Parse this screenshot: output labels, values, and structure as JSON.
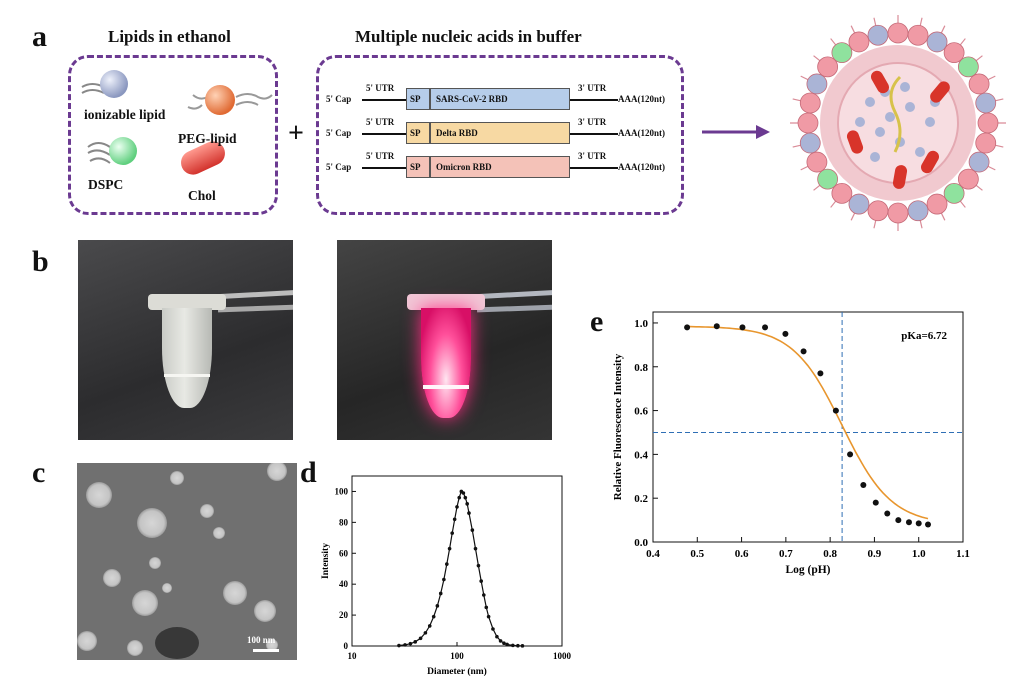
{
  "panels": {
    "a": "a",
    "b": "b",
    "c": "c",
    "d": "d",
    "e": "e"
  },
  "panel_a": {
    "lipids_title": "Lipids in ethanol",
    "nucleic_title": "Multiple nucleic acids in buffer",
    "lipid_labels": {
      "ionizable": "ionizable lipid",
      "peg": "PEG-lipid",
      "dspc": "DSPC",
      "chol": "Chol"
    },
    "plus": "+",
    "constructs": [
      {
        "cap": "5' Cap",
        "utr5": "5' UTR",
        "sp": "SP",
        "name": "SARS-CoV-2 RBD",
        "utr3": "3' UTR",
        "tail": "AAA(120nt)",
        "color": "#b6cdea"
      },
      {
        "cap": "5' Cap",
        "utr5": "5' UTR",
        "sp": "SP",
        "name": "Delta RBD",
        "utr3": "3' UTR",
        "tail": "AAA(120nt)",
        "color": "#f7d9a3"
      },
      {
        "cap": "5' Cap",
        "utr5": "5' UTR",
        "sp": "SP",
        "name": "Omicron RBD",
        "utr3": "3' UTR",
        "tail": "AAA(120nt)",
        "color": "#f4c2b8"
      }
    ]
  },
  "panel_c": {
    "scale_bar": "100 nm"
  },
  "chart_data": [
    {
      "type": "line",
      "panel": "d",
      "xlabel": "Diameter (nm)",
      "ylabel": "Intensity",
      "xscale": "log",
      "xlim": [
        10,
        1000
      ],
      "ylim": [
        0,
        110
      ],
      "xticks": [
        "10",
        "100",
        "1000"
      ],
      "yticks": [
        "0",
        "20",
        "40",
        "60",
        "80",
        "100"
      ],
      "peak_x": 105,
      "peak_y": 100,
      "series": [
        {
          "x": [
            28,
            32,
            36,
            40,
            45,
            50,
            55,
            60,
            65,
            70,
            75,
            80,
            85,
            90,
            95,
            100,
            105,
            110,
            115,
            120,
            125,
            130,
            140,
            150,
            160,
            170,
            180,
            190,
            200,
            220,
            240,
            260,
            280,
            300,
            340,
            380,
            420
          ],
          "y": [
            0.3,
            0.7,
            1.5,
            2.7,
            5,
            8.5,
            13,
            19,
            26,
            34,
            43,
            53,
            63,
            73,
            82,
            90,
            96,
            100,
            99,
            96,
            92,
            86,
            75,
            63,
            52,
            42,
            33,
            25,
            19,
            11,
            6,
            3.3,
            1.8,
            1,
            0.4,
            0.2,
            0.1
          ]
        }
      ]
    },
    {
      "type": "scatter",
      "panel": "e",
      "xlabel": "Log (pH)",
      "ylabel": "Relative Fluorescence Intensity",
      "xlim": [
        0.4,
        1.1
      ],
      "ylim": [
        0.0,
        1.05
      ],
      "xticks": [
        "0.4",
        "0.5",
        "0.6",
        "0.7",
        "0.8",
        "0.9",
        "1.0",
        "1.1"
      ],
      "yticks": [
        "0.0",
        "0.2",
        "0.4",
        "0.6",
        "0.8",
        "1.0"
      ],
      "annotation": "pKa=6.72",
      "vline_x": 0.827,
      "hline_y": 0.5,
      "series": [
        {
          "x": [
            0.477,
            0.544,
            0.602,
            0.653,
            0.699,
            0.74,
            0.778,
            0.813,
            0.845,
            0.875,
            0.903,
            0.929,
            0.954,
            0.978,
            1.0,
            1.021
          ],
          "y": [
            0.98,
            0.985,
            0.98,
            0.98,
            0.95,
            0.87,
            0.77,
            0.6,
            0.4,
            0.26,
            0.18,
            0.13,
            0.1,
            0.09,
            0.085,
            0.08
          ]
        }
      ],
      "colors": {
        "fit": "#e8962e",
        "points": "#111111",
        "guides": "#2f6fb5"
      }
    }
  ]
}
